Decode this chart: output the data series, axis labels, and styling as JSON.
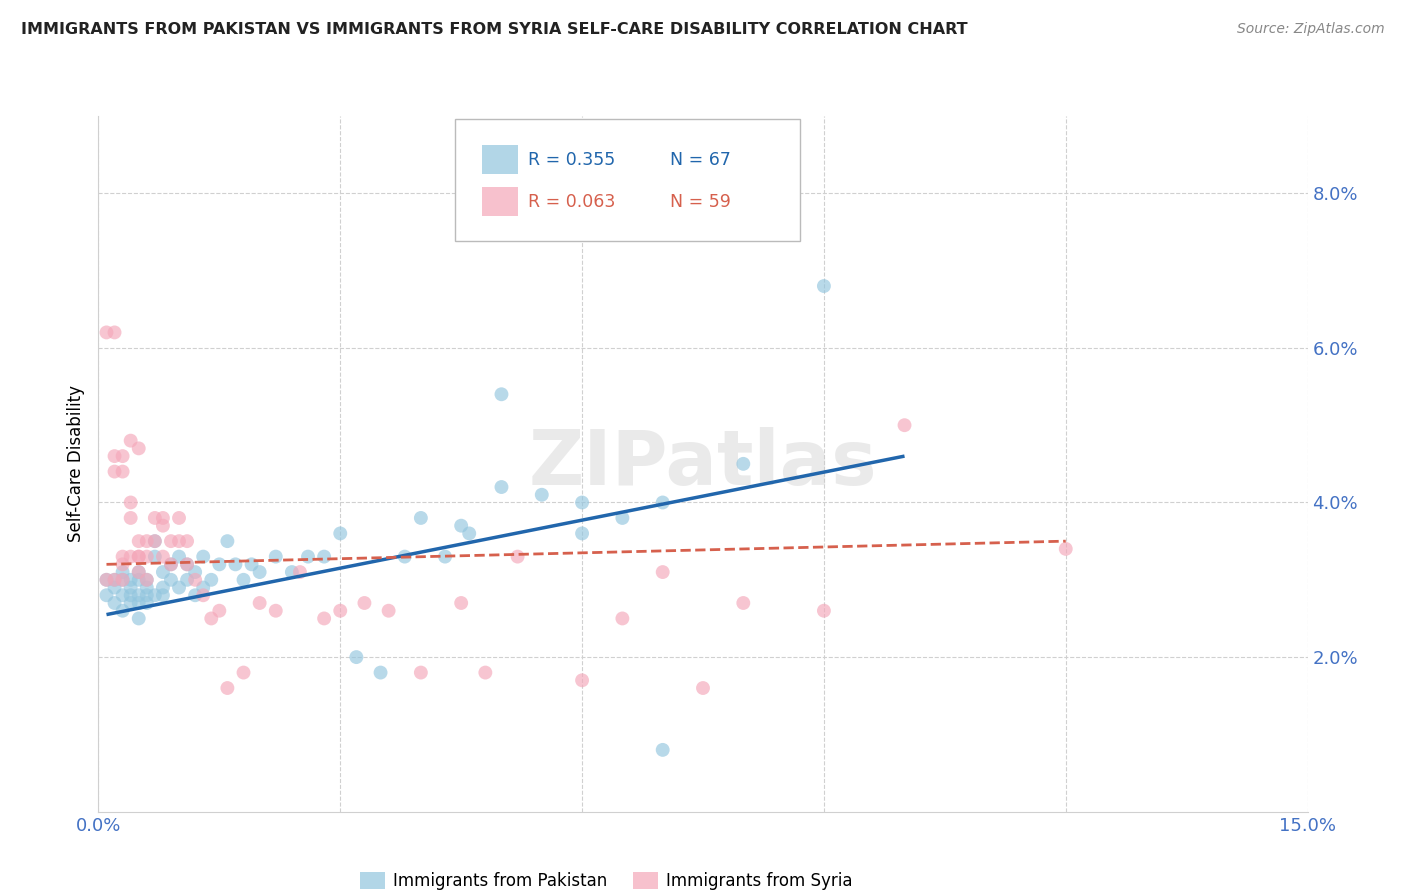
{
  "title": "IMMIGRANTS FROM PAKISTAN VS IMMIGRANTS FROM SYRIA SELF-CARE DISABILITY CORRELATION CHART",
  "source": "Source: ZipAtlas.com",
  "ylabel": "Self-Care Disability",
  "xlim": [
    0.0,
    0.15
  ],
  "ylim": [
    0.0,
    0.09
  ],
  "xticks": [
    0.0,
    0.03,
    0.06,
    0.09,
    0.12,
    0.15
  ],
  "xticklabels": [
    "0.0%",
    "",
    "",
    "",
    "",
    "15.0%"
  ],
  "yticks": [
    0.02,
    0.04,
    0.06,
    0.08
  ],
  "yticklabels": [
    "2.0%",
    "4.0%",
    "6.0%",
    "8.0%"
  ],
  "pakistan_R": 0.355,
  "pakistan_N": 67,
  "syria_R": 0.063,
  "syria_N": 59,
  "pakistan_color": "#92c5de",
  "syria_color": "#f4a7b9",
  "pakistan_line_color": "#2166ac",
  "syria_line_color": "#d6604d",
  "grid_color": "#d0d0d0",
  "tick_color": "#4472C4",
  "watermark": "ZIPatlas",
  "pakistan_x": [
    0.001,
    0.001,
    0.002,
    0.002,
    0.002,
    0.003,
    0.003,
    0.003,
    0.003,
    0.004,
    0.004,
    0.004,
    0.004,
    0.005,
    0.005,
    0.005,
    0.005,
    0.005,
    0.006,
    0.006,
    0.006,
    0.006,
    0.007,
    0.007,
    0.007,
    0.008,
    0.008,
    0.008,
    0.009,
    0.009,
    0.01,
    0.01,
    0.011,
    0.011,
    0.012,
    0.012,
    0.013,
    0.013,
    0.014,
    0.015,
    0.016,
    0.017,
    0.018,
    0.019,
    0.02,
    0.022,
    0.024,
    0.026,
    0.028,
    0.03,
    0.032,
    0.035,
    0.038,
    0.04,
    0.043,
    0.046,
    0.05,
    0.055,
    0.06,
    0.065,
    0.07,
    0.08,
    0.09,
    0.045,
    0.05,
    0.06,
    0.07
  ],
  "pakistan_y": [
    0.028,
    0.03,
    0.03,
    0.027,
    0.029,
    0.028,
    0.031,
    0.03,
    0.026,
    0.029,
    0.028,
    0.03,
    0.027,
    0.027,
    0.03,
    0.028,
    0.031,
    0.025,
    0.03,
    0.029,
    0.028,
    0.027,
    0.035,
    0.033,
    0.028,
    0.031,
    0.029,
    0.028,
    0.032,
    0.03,
    0.033,
    0.029,
    0.032,
    0.03,
    0.031,
    0.028,
    0.033,
    0.029,
    0.03,
    0.032,
    0.035,
    0.032,
    0.03,
    0.032,
    0.031,
    0.033,
    0.031,
    0.033,
    0.033,
    0.036,
    0.02,
    0.018,
    0.033,
    0.038,
    0.033,
    0.036,
    0.054,
    0.041,
    0.04,
    0.038,
    0.04,
    0.045,
    0.068,
    0.037,
    0.042,
    0.036,
    0.008
  ],
  "syria_x": [
    0.001,
    0.001,
    0.002,
    0.002,
    0.002,
    0.002,
    0.003,
    0.003,
    0.003,
    0.003,
    0.003,
    0.004,
    0.004,
    0.004,
    0.004,
    0.005,
    0.005,
    0.005,
    0.005,
    0.005,
    0.006,
    0.006,
    0.006,
    0.007,
    0.007,
    0.008,
    0.008,
    0.008,
    0.009,
    0.009,
    0.01,
    0.01,
    0.011,
    0.011,
    0.012,
    0.013,
    0.014,
    0.015,
    0.016,
    0.018,
    0.02,
    0.022,
    0.025,
    0.028,
    0.03,
    0.033,
    0.036,
    0.04,
    0.045,
    0.048,
    0.052,
    0.06,
    0.065,
    0.07,
    0.075,
    0.08,
    0.09,
    0.1,
    0.12
  ],
  "syria_y": [
    0.03,
    0.062,
    0.062,
    0.03,
    0.046,
    0.044,
    0.046,
    0.044,
    0.033,
    0.032,
    0.03,
    0.048,
    0.033,
    0.04,
    0.038,
    0.035,
    0.033,
    0.033,
    0.031,
    0.047,
    0.035,
    0.033,
    0.03,
    0.038,
    0.035,
    0.038,
    0.037,
    0.033,
    0.035,
    0.032,
    0.038,
    0.035,
    0.035,
    0.032,
    0.03,
    0.028,
    0.025,
    0.026,
    0.016,
    0.018,
    0.027,
    0.026,
    0.031,
    0.025,
    0.026,
    0.027,
    0.026,
    0.018,
    0.027,
    0.018,
    0.033,
    0.017,
    0.025,
    0.031,
    0.016,
    0.027,
    0.026,
    0.05,
    0.034
  ],
  "pak_line_x": [
    0.001,
    0.1
  ],
  "pak_line_y": [
    0.0255,
    0.046
  ],
  "syr_line_x": [
    0.001,
    0.12
  ],
  "syr_line_y": [
    0.032,
    0.035
  ]
}
